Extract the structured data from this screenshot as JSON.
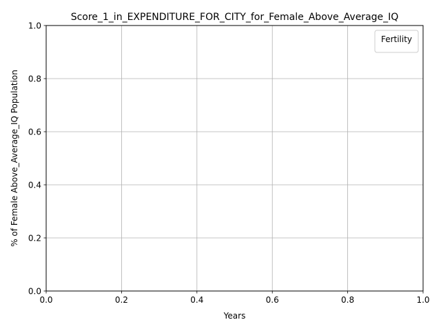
{
  "chart_data": {
    "type": "line",
    "title": "Score_1_in_EXPENDITURE_FOR_CITY_for_Female_Above_Average_IQ",
    "xlabel": "Years",
    "ylabel": "% of Female Above_Average_IQ Population",
    "xlim": [
      0.0,
      1.0
    ],
    "ylim": [
      0.0,
      1.0
    ],
    "xticks": [
      "0.0",
      "0.2",
      "0.4",
      "0.6",
      "0.8",
      "1.0"
    ],
    "yticks": [
      "0.0",
      "0.2",
      "0.4",
      "0.6",
      "0.8",
      "1.0"
    ],
    "grid": true,
    "legend": {
      "title": "Fertility",
      "placement": "top-right",
      "entries": []
    },
    "series": []
  }
}
